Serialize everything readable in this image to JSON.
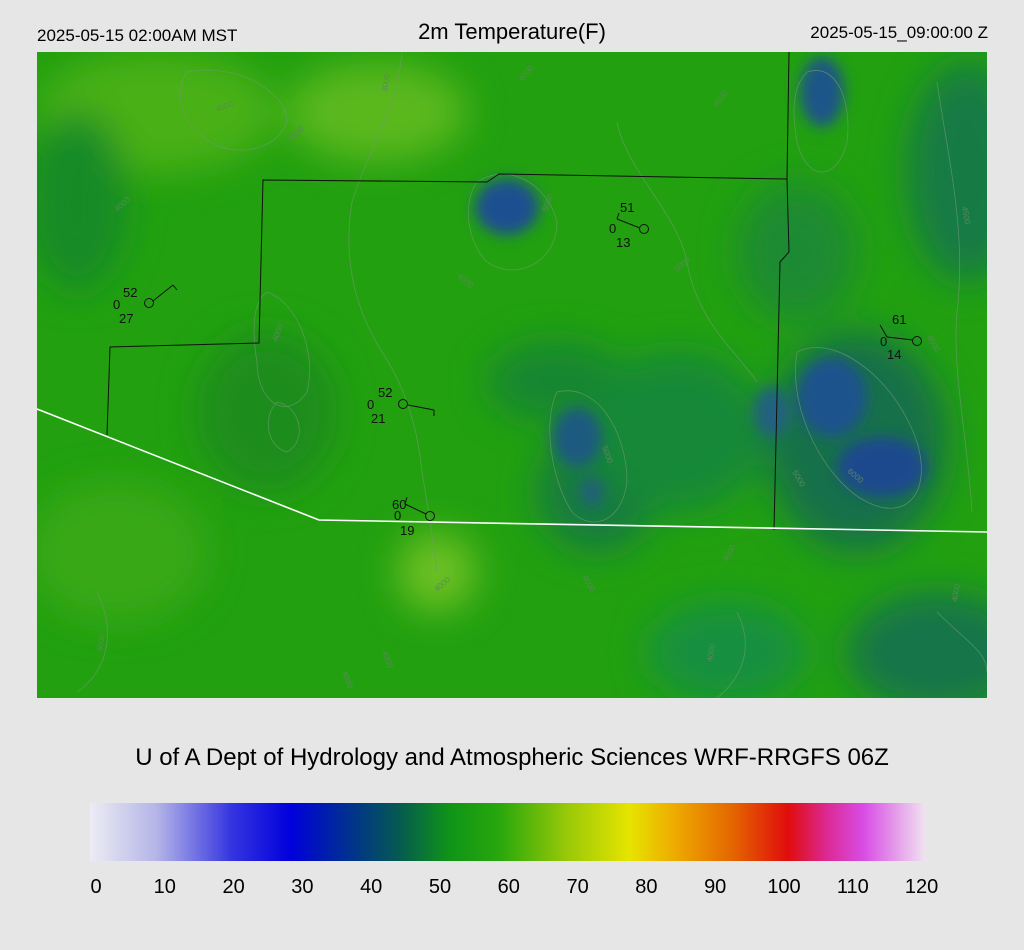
{
  "header": {
    "local_time": "2025-05-15 02:00AM MST",
    "title": "2m Temperature(F)",
    "utc_time": "2025-05-15_09:00:00 Z"
  },
  "credit": "U of A Dept of Hydrology and Atmospheric Sciences WRF-RRGFS 06Z",
  "colorbar": {
    "ticks": [
      "0",
      "10",
      "20",
      "30",
      "40",
      "50",
      "60",
      "70",
      "80",
      "90",
      "100",
      "110",
      "120"
    ]
  },
  "stations": [
    {
      "temp": "52",
      "dew": "27",
      "code": "0"
    },
    {
      "temp": "51",
      "dew": "13",
      "code": "0"
    },
    {
      "temp": "61",
      "dew": "14",
      "code": "0"
    },
    {
      "temp": "52",
      "dew": "21",
      "code": "0"
    },
    {
      "temp": "60",
      "dew": "19",
      "code": "0"
    }
  ],
  "contour_labels": [
    "3000",
    "4000",
    "4500",
    "5000",
    "5500",
    "6000"
  ],
  "colors": {
    "background": "#e6e6e6",
    "temp_base": "#22a010",
    "cold_spot": "#1a4a8a",
    "boundary": "#111111",
    "border": "#ffffff"
  }
}
